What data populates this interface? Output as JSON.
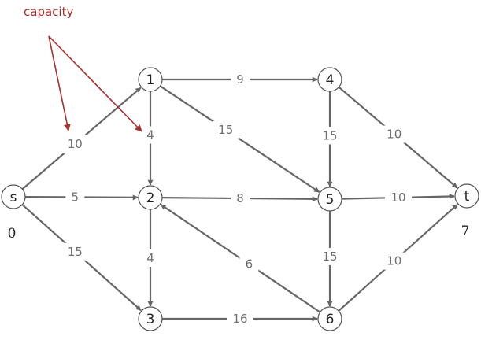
{
  "annotation": {
    "text": "capacity",
    "color": "#a8312a"
  },
  "colors": {
    "edge": "#666666",
    "label_bg": "#ffffff",
    "capacity_text": "#707070"
  },
  "nodes": [
    {
      "id": "s",
      "label": "s"
    },
    {
      "id": "1",
      "label": "1"
    },
    {
      "id": "2",
      "label": "2"
    },
    {
      "id": "3",
      "label": "3"
    },
    {
      "id": "4",
      "label": "4"
    },
    {
      "id": "5",
      "label": "5"
    },
    {
      "id": "6",
      "label": "6"
    },
    {
      "id": "t",
      "label": "t"
    }
  ],
  "edges": [
    {
      "from": "s",
      "to": "1",
      "capacity": "10"
    },
    {
      "from": "s",
      "to": "2",
      "capacity": "5"
    },
    {
      "from": "s",
      "to": "3",
      "capacity": "15"
    },
    {
      "from": "1",
      "to": "4",
      "capacity": "9"
    },
    {
      "from": "1",
      "to": "2",
      "capacity": "4"
    },
    {
      "from": "1",
      "to": "5",
      "capacity": "15"
    },
    {
      "from": "2",
      "to": "3",
      "capacity": "4"
    },
    {
      "from": "2",
      "to": "5",
      "capacity": "8"
    },
    {
      "from": "3",
      "to": "6",
      "capacity": "16"
    },
    {
      "from": "4",
      "to": "5",
      "capacity": "15"
    },
    {
      "from": "4",
      "to": "t",
      "capacity": "10"
    },
    {
      "from": "5",
      "to": "t",
      "capacity": "10"
    },
    {
      "from": "5",
      "to": "6",
      "capacity": "15"
    },
    {
      "from": "6",
      "to": "2",
      "capacity": "6"
    },
    {
      "from": "6",
      "to": "t",
      "capacity": "10"
    }
  ],
  "outside_labels": [
    {
      "node": "s",
      "text": "0"
    },
    {
      "node": "t",
      "text": "7"
    }
  ]
}
